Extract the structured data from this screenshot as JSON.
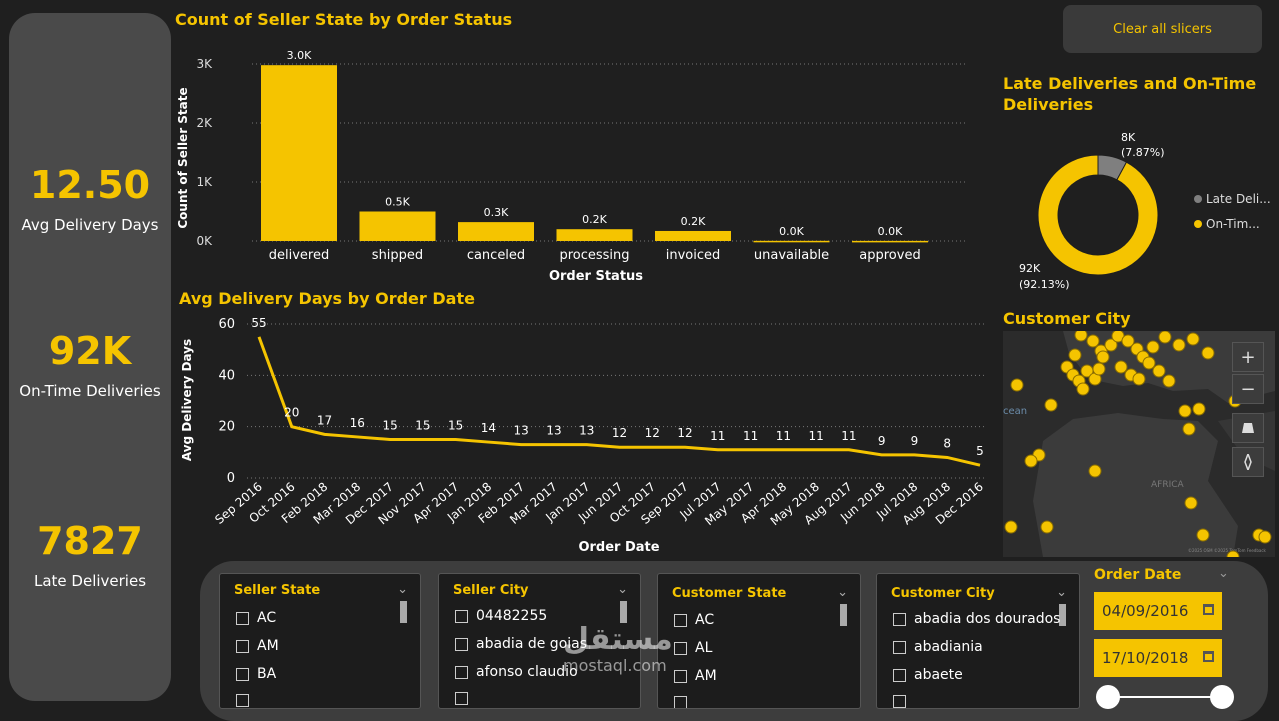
{
  "kpis": [
    {
      "value": "12.50",
      "label": "Avg Delivery Days"
    },
    {
      "value": "92K",
      "label": "On-Time Deliveries"
    },
    {
      "value": "7827",
      "label": "Late Deliveries"
    }
  ],
  "clear_button": "Clear all slicers",
  "bar_chart": {
    "title": "Count of Seller State by Order Status",
    "xlabel": "Order Status",
    "ylabel": "Count of Seller State",
    "yticks": [
      "0K",
      "1K",
      "2K",
      "3K"
    ]
  },
  "line_chart": {
    "title": "Avg Delivery Days by Order Date",
    "xlabel": "Order Date",
    "ylabel": "Avg Delivery Days",
    "yticks": [
      "0",
      "20",
      "40",
      "60"
    ]
  },
  "donut": {
    "title_line1": "Late Deliveries and On-Time",
    "title_line2": "Deliveries",
    "late_label": "8K",
    "late_pct": "(7.87%)",
    "ontime_label": "92K",
    "ontime_pct": "(92.13%)",
    "legend": [
      "Late Deli...",
      "On-Tim..."
    ],
    "colors": {
      "late": "#7f7f7f",
      "ontime": "#f5c400"
    }
  },
  "map": {
    "title": "Customer City",
    "ocean_label": "cean",
    "africa_label": "AFRICA",
    "credits": "©2025 OSM ©2025 TomTom Feedback"
  },
  "slicers": {
    "seller_state": {
      "title": "Seller State",
      "items": [
        "AC",
        "AM",
        "BA"
      ]
    },
    "seller_city": {
      "title": "Seller City",
      "items": [
        "04482255",
        "abadia de goias",
        "afonso claudio"
      ]
    },
    "customer_state": {
      "title": "Customer State",
      "items": [
        "AC",
        "AL",
        "AM"
      ]
    },
    "customer_city": {
      "title": "Customer City",
      "items": [
        "abadia dos dourados",
        "abadiania",
        "abaete"
      ]
    },
    "order_date": {
      "title": "Order Date",
      "start": "04/09/2016",
      "end": "17/10/2018"
    }
  },
  "watermark": {
    "arabic": "مستقل",
    "latin": "mostaql.com"
  },
  "chart_data": [
    {
      "type": "bar",
      "title": "Count of Seller State by Order Status",
      "xlabel": "Order Status",
      "ylabel": "Count of Seller State",
      "categories": [
        "delivered",
        "shipped",
        "canceled",
        "processing",
        "invoiced",
        "unavailable",
        "approved"
      ],
      "values": [
        2980,
        500,
        320,
        200,
        170,
        3,
        2
      ],
      "data_labels": [
        "3.0K",
        "0.5K",
        "0.3K",
        "0.2K",
        "0.2K",
        "0.0K",
        "0.0K"
      ],
      "ylim": [
        0,
        3000
      ],
      "grid": true
    },
    {
      "type": "line",
      "title": "Avg Delivery Days by Order Date",
      "xlabel": "Order Date",
      "ylabel": "Avg Delivery Days",
      "x": [
        "Sep 2016",
        "Oct 2016",
        "Feb 2018",
        "Mar 2018",
        "Dec 2017",
        "Nov 2017",
        "Apr 2017",
        "Jan 2018",
        "Feb 2017",
        "Mar 2017",
        "Jan 2017",
        "Jun 2017",
        "Oct 2017",
        "Sep 2017",
        "Jul 2017",
        "May 2017",
        "Apr 2018",
        "May 2018",
        "Aug 2017",
        "Jun 2018",
        "Jul 2018",
        "Aug 2018",
        "Dec 2016"
      ],
      "values": [
        55,
        20,
        17,
        16,
        15,
        15,
        15,
        14,
        13,
        13,
        13,
        12,
        12,
        12,
        11,
        11,
        11,
        11,
        11,
        9,
        9,
        8,
        5
      ],
      "ylim": [
        0,
        60
      ],
      "grid": true
    },
    {
      "type": "pie",
      "title": "Late Deliveries and On-Time Deliveries",
      "categories": [
        "Late Deli...",
        "On-Tim..."
      ],
      "values": [
        7.87,
        92.13
      ],
      "data_labels": [
        "8K (7.87%)",
        "92K (92.13%)"
      ]
    }
  ]
}
